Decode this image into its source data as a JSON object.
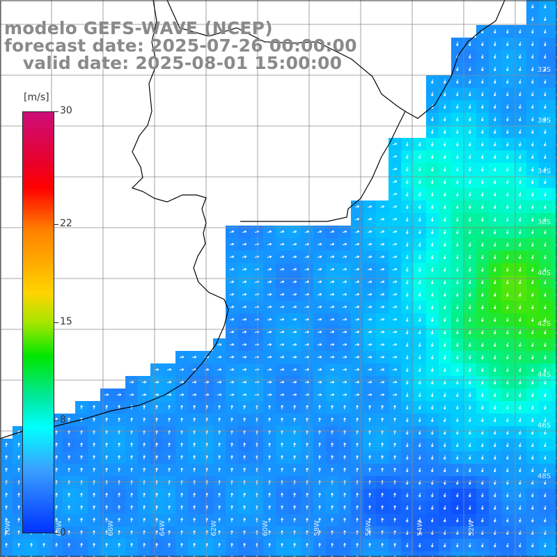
{
  "titles": {
    "model": "modelo GEFS-WAVE (NCEP)",
    "forecast": "forecast date: 2025-07-26 00:00:00",
    "valid": "   valid date: 2025-08-01 15:00:00"
  },
  "colorbar": {
    "unit": "[m/s]",
    "ticks": [
      "30",
      "22",
      "15",
      "8",
      "0"
    ],
    "tick_values": [
      30,
      22,
      15,
      8,
      0
    ],
    "range": [
      0,
      30
    ]
  },
  "map": {
    "lat_labels": [
      "32S",
      "36S",
      "34S",
      "38S",
      "40S",
      "42S",
      "44S",
      "46S",
      "48S"
    ],
    "lon_labels": [
      "70W",
      "68W",
      "66W",
      "64W",
      "62W",
      "60W",
      "58W",
      "56W",
      "54W",
      "52W"
    ],
    "field": "wind speed",
    "colors": {
      "land": "#ffffff",
      "grid": "#888888",
      "coast": "#000000",
      "arrow": "#ffffff"
    }
  }
}
